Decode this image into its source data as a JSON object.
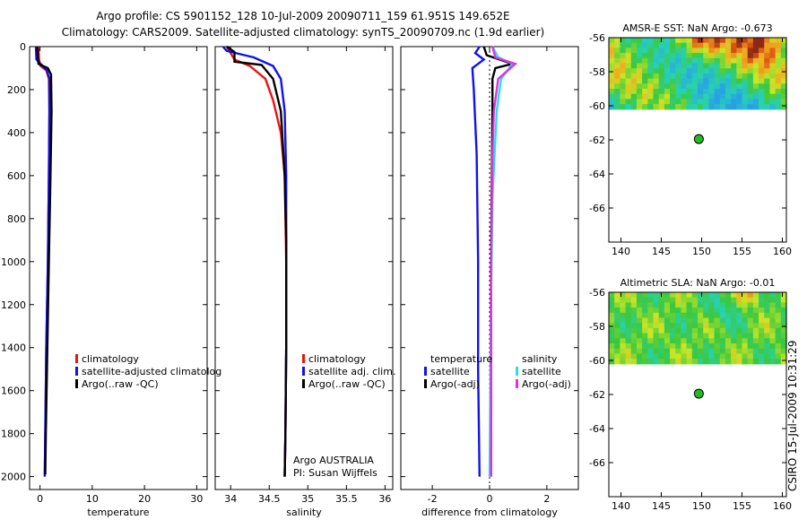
{
  "title_line1": "Argo profile: CS 5901152_128 10-Jul-2009 20090711_159 61.951S 149.652E",
  "title_line2": "Climatology: CARS2009. Satellite-adjusted climatology: synTS_20090709.nc (1.9d earlier)",
  "stamp": "CSIRO 15-Jul-2009 10:31:29",
  "colors": {
    "climatology": "#ee1111",
    "satellite": "#1111ee",
    "argo": "#000000",
    "satellite_sal": "#22e0e8",
    "argo_adj_sal": "#e030e0",
    "dot": "#22bb22"
  },
  "legend1": {
    "clim": "climatology",
    "sat": "satellite-adjusted climatolog",
    "argo": "Argo(..raw -QC)"
  },
  "legend2": {
    "clim": "climatology",
    "sat": "satellite adj. clim.",
    "argo": "Argo(..raw -QC)",
    "credit1": "Argo AUSTRALIA",
    "credit2": "PI: Susan Wijffels"
  },
  "legend3": {
    "temp_head": "temperature",
    "sal_head": "salinity",
    "t_sat": "satellite",
    "t_argo": "Argo(-adj)",
    "s_sat": "satellite",
    "s_argo": "Argo(-adj)"
  },
  "map1_title": "AMSR-E SST: NaN Argo: -0.673",
  "map2_title": "Altimetric SLA: NaN Argo: -0.01",
  "chart_data": [
    {
      "type": "line",
      "xlabel": "temperature",
      "ylabel": "",
      "xlim": [
        -2,
        32
      ],
      "ylim": [
        2060,
        0
      ],
      "xticks": [
        0,
        10,
        20,
        30
      ],
      "yticks": [
        0,
        200,
        400,
        600,
        800,
        1000,
        1200,
        1400,
        1600,
        1800,
        2000
      ],
      "series": [
        {
          "name": "climatology",
          "points": [
            [
              -0.3,
              0
            ],
            [
              -0.2,
              60
            ],
            [
              0.1,
              90
            ],
            [
              1.2,
              110
            ],
            [
              1.7,
              150
            ],
            [
              1.8,
              300
            ],
            [
              1.7,
              600
            ],
            [
              1.5,
              1000
            ],
            [
              1.2,
              1400
            ],
            [
              1.0,
              1800
            ],
            [
              0.9,
              2000
            ]
          ]
        },
        {
          "name": "satellite-adjusted climatolog",
          "points": [
            [
              -0.8,
              0
            ],
            [
              -0.7,
              60
            ],
            [
              0.5,
              90
            ],
            [
              1.3,
              110
            ],
            [
              1.8,
              150
            ],
            [
              1.8,
              300
            ],
            [
              1.7,
              600
            ],
            [
              1.5,
              1000
            ],
            [
              1.2,
              1400
            ],
            [
              1.0,
              1800
            ],
            [
              0.9,
              2000
            ]
          ]
        },
        {
          "name": "Argo(..raw -QC)",
          "points": [
            [
              -0.5,
              0
            ],
            [
              -0.4,
              50
            ],
            [
              -0.3,
              80
            ],
            [
              1.5,
              100
            ],
            [
              2.1,
              130
            ],
            [
              2.2,
              300
            ],
            [
              2.0,
              600
            ],
            [
              1.7,
              1000
            ],
            [
              1.4,
              1400
            ],
            [
              1.1,
              1800
            ],
            [
              1.0,
              1990
            ]
          ]
        }
      ]
    },
    {
      "type": "line",
      "xlabel": "salinity",
      "ylabel": "",
      "xlim": [
        33.8,
        36.1
      ],
      "ylim": [
        2060,
        0
      ],
      "xticks": [
        34,
        34.5,
        35,
        35.5,
        36
      ],
      "series": [
        {
          "name": "climatology",
          "points": [
            [
              33.95,
              0
            ],
            [
              34.05,
              60
            ],
            [
              34.25,
              90
            ],
            [
              34.45,
              150
            ],
            [
              34.55,
              250
            ],
            [
              34.65,
              400
            ],
            [
              34.7,
              600
            ],
            [
              34.72,
              1000
            ],
            [
              34.72,
              1400
            ],
            [
              34.71,
              1800
            ],
            [
              34.7,
              2000
            ]
          ]
        },
        {
          "name": "satellite adj. clim.",
          "points": [
            [
              33.9,
              0
            ],
            [
              33.95,
              20
            ],
            [
              34.3,
              50
            ],
            [
              34.55,
              90
            ],
            [
              34.65,
              150
            ],
            [
              34.7,
              300
            ],
            [
              34.72,
              600
            ],
            [
              34.72,
              1000
            ],
            [
              34.72,
              1400
            ],
            [
              34.71,
              1800
            ],
            [
              34.7,
              2000
            ]
          ]
        },
        {
          "name": "Argo(..raw -QC)",
          "points": [
            [
              33.95,
              0
            ],
            [
              34.05,
              25
            ],
            [
              34.05,
              70
            ],
            [
              34.4,
              85
            ],
            [
              34.55,
              150
            ],
            [
              34.65,
              300
            ],
            [
              34.7,
              600
            ],
            [
              34.72,
              900
            ],
            [
              34.72,
              1400
            ],
            [
              34.71,
              1800
            ],
            [
              34.7,
              2000
            ]
          ]
        }
      ]
    },
    {
      "type": "line",
      "xlabel": "difference from climatology",
      "ylabel": "",
      "xlim": [
        -3.1,
        3.1
      ],
      "ylim": [
        2060,
        0
      ],
      "xticks": [
        -2,
        0,
        2
      ],
      "series": [
        {
          "name": "temperature satellite",
          "points": [
            [
              -0.35,
              0
            ],
            [
              -0.5,
              30
            ],
            [
              -0.2,
              60
            ],
            [
              -0.6,
              100
            ],
            [
              -0.55,
              200
            ],
            [
              -0.45,
              500
            ],
            [
              -0.4,
              1000
            ],
            [
              -0.4,
              1500
            ],
            [
              -0.35,
              2000
            ]
          ]
        },
        {
          "name": "temperature Argo(-adj)",
          "points": [
            [
              -0.2,
              0
            ],
            [
              -0.1,
              40
            ],
            [
              0.8,
              80
            ],
            [
              0.2,
              100
            ],
            [
              0.1,
              150
            ],
            [
              0.1,
              300
            ],
            [
              0.05,
              1000
            ],
            [
              0.05,
              2000
            ]
          ]
        },
        {
          "name": "salinity satellite",
          "points": [
            [
              0.1,
              0
            ],
            [
              0.3,
              50
            ],
            [
              0.8,
              80
            ],
            [
              0.4,
              150
            ],
            [
              0.25,
              300
            ],
            [
              0.1,
              700
            ],
            [
              0.05,
              1200
            ],
            [
              0.0,
              2000
            ]
          ]
        },
        {
          "name": "salinity Argo(-adj)",
          "points": [
            [
              0.1,
              0
            ],
            [
              0.2,
              50
            ],
            [
              0.9,
              80
            ],
            [
              0.3,
              150
            ],
            [
              0.15,
              300
            ],
            [
              0.1,
              500
            ],
            [
              0.05,
              1000
            ],
            [
              0.05,
              2000
            ]
          ]
        }
      ]
    },
    {
      "type": "heatmap",
      "title": "AMSR-E SST: NaN Argo: -0.673",
      "xlim": [
        138.5,
        160.5
      ],
      "ylim": [
        -68,
        -56
      ],
      "xticks": [
        140,
        145,
        150,
        155,
        160
      ],
      "yticks": [
        -56,
        -58,
        -60,
        -62,
        -64,
        -66
      ],
      "data_ylim": [
        -60.2,
        -56
      ],
      "argo_position": [
        149.652,
        -61.951
      ]
    },
    {
      "type": "heatmap",
      "title": "Altimetric SLA: NaN Argo: -0.01",
      "xlim": [
        138.5,
        160.5
      ],
      "ylim": [
        -68,
        -56
      ],
      "xticks": [
        140,
        145,
        150,
        155,
        160
      ],
      "yticks": [
        -56,
        -58,
        -60,
        -62,
        -64,
        -66
      ],
      "data_ylim": [
        -60.2,
        -56
      ],
      "argo_position": [
        149.652,
        -61.951
      ]
    }
  ]
}
